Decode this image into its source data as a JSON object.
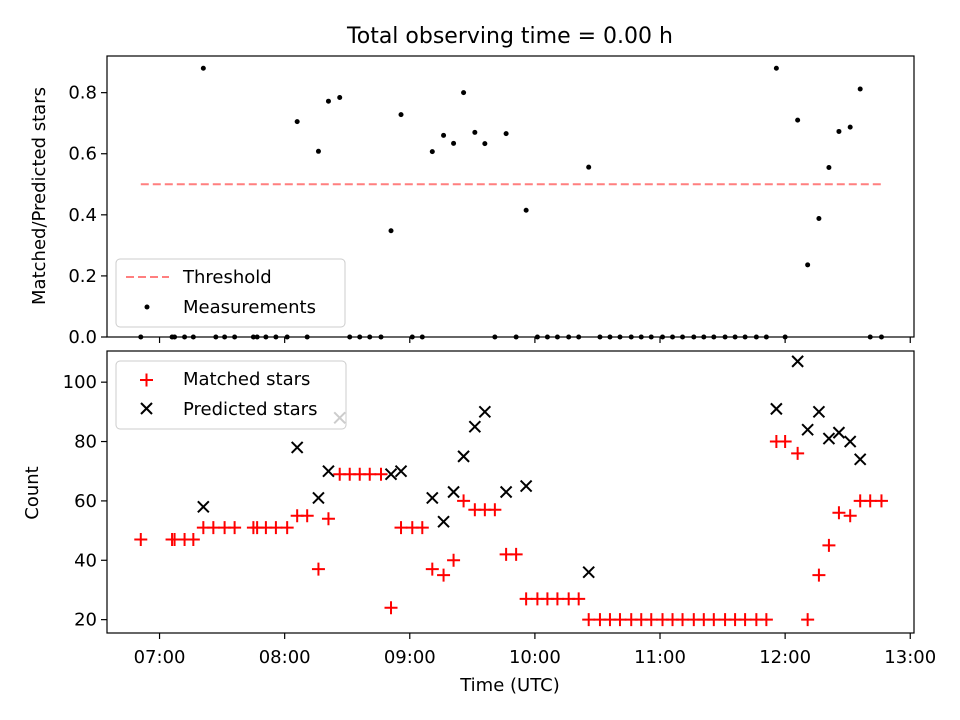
{
  "figure": {
    "title": "Total observing time = 0.00 h",
    "xlabel": "Time (UTC)",
    "x_tick_labels": [
      "07:00",
      "08:00",
      "09:00",
      "10:00",
      "11:00",
      "12:00",
      "13:00"
    ],
    "x_tick_hours": [
      7,
      8,
      9,
      10,
      11,
      12,
      13
    ],
    "xlim_hours": [
      6.58,
      13.03
    ]
  },
  "chart_data": [
    {
      "type": "scatter",
      "panel": "top",
      "ylabel": "Matched/Predicted stars",
      "ylim": [
        0,
        0.92
      ],
      "y_ticks": [
        0.0,
        0.2,
        0.4,
        0.6,
        0.8
      ],
      "y_tick_labels": [
        "0.0",
        "0.2",
        "0.4",
        "0.6",
        "0.8"
      ],
      "legend_position": "lower-left",
      "threshold": {
        "name": "Threshold",
        "value": 0.5,
        "x_range": [
          6.85,
          12.77
        ],
        "color": "#ff7f7f"
      },
      "series": [
        {
          "name": "Measurements",
          "color": "#000000",
          "x": [
            6.85,
            7.1,
            7.12,
            7.2,
            7.27,
            7.35,
            7.45,
            7.52,
            7.6,
            7.75,
            7.78,
            7.85,
            7.93,
            8.02,
            8.1,
            8.18,
            8.27,
            8.35,
            8.44,
            8.52,
            8.6,
            8.68,
            8.77,
            8.85,
            8.93,
            9.02,
            9.1,
            9.18,
            9.27,
            9.35,
            9.43,
            9.52,
            9.6,
            9.68,
            9.77,
            9.85,
            9.93,
            10.02,
            10.1,
            10.18,
            10.27,
            10.35,
            10.43,
            10.52,
            10.6,
            10.68,
            10.77,
            10.85,
            10.93,
            11.02,
            11.1,
            11.18,
            11.27,
            11.35,
            11.43,
            11.52,
            11.6,
            11.68,
            11.77,
            11.85,
            11.93,
            12.0,
            12.1,
            12.18,
            12.27,
            12.35,
            12.43,
            12.52,
            12.6,
            12.68,
            12.77
          ],
          "y": [
            0.0,
            0.0,
            0.0,
            0.0,
            0.0,
            0.88,
            0.0,
            0.0,
            0.0,
            0.0,
            0.0,
            0.0,
            0.0,
            0.0,
            0.705,
            0.0,
            0.608,
            0.772,
            0.784,
            0.0,
            0.0,
            0.0,
            0.0,
            0.348,
            0.728,
            0.0,
            0.0,
            0.607,
            0.66,
            0.634,
            0.8,
            0.67,
            0.633,
            0.0,
            0.666,
            0.0,
            0.415,
            0.0,
            0.0,
            0.0,
            0.0,
            0.0,
            0.556,
            0.0,
            0.0,
            0.0,
            0.0,
            0.0,
            0.0,
            0.0,
            0.0,
            0.0,
            0.0,
            0.0,
            0.0,
            0.0,
            0.0,
            0.0,
            0.0,
            0.0,
            0.88,
            0.0,
            0.71,
            0.236,
            0.388,
            0.555,
            0.673,
            0.687,
            0.812,
            0.0,
            0.0
          ]
        }
      ]
    },
    {
      "type": "scatter",
      "panel": "bottom",
      "ylabel": "Count",
      "ylim": [
        15.5,
        110.5
      ],
      "y_ticks": [
        20,
        40,
        60,
        80,
        100
      ],
      "y_tick_labels": [
        "20",
        "40",
        "60",
        "80",
        "100"
      ],
      "legend_position": "upper-left",
      "series": [
        {
          "name": "Matched stars",
          "marker": "plus",
          "color": "#ff0000",
          "x": [
            6.85,
            7.1,
            7.12,
            7.2,
            7.27,
            7.35,
            7.43,
            7.52,
            7.6,
            7.75,
            7.78,
            7.85,
            7.93,
            8.02,
            8.1,
            8.18,
            8.27,
            8.35,
            8.44,
            8.52,
            8.6,
            8.68,
            8.77,
            8.85,
            8.93,
            9.02,
            9.1,
            9.18,
            9.27,
            9.35,
            9.43,
            9.52,
            9.6,
            9.68,
            9.77,
            9.85,
            9.93,
            10.02,
            10.1,
            10.18,
            10.27,
            10.35,
            10.43,
            10.52,
            10.6,
            10.68,
            10.77,
            10.85,
            10.93,
            11.02,
            11.1,
            11.18,
            11.27,
            11.35,
            11.43,
            11.52,
            11.6,
            11.68,
            11.77,
            11.85,
            11.93,
            12.0,
            12.1,
            12.18,
            12.27,
            12.35,
            12.43,
            12.52,
            12.6,
            12.68,
            12.77
          ],
          "y": [
            47,
            47,
            47,
            47,
            47,
            51,
            51,
            51,
            51,
            51,
            51,
            51,
            51,
            51,
            55,
            55,
            37,
            54,
            69,
            69,
            69,
            69,
            69,
            24,
            51,
            51,
            51,
            37,
            35,
            40,
            60,
            57,
            57,
            57,
            42,
            42,
            27,
            27,
            27,
            27,
            27,
            27,
            20,
            20,
            20,
            20,
            20,
            20,
            20,
            20,
            20,
            20,
            20,
            20,
            20,
            20,
            20,
            20,
            20,
            20,
            80,
            80,
            76,
            20,
            35,
            45,
            56,
            55,
            60,
            60,
            60
          ]
        },
        {
          "name": "Predicted stars",
          "marker": "x",
          "color": "#000000",
          "x": [
            7.35,
            8.1,
            8.27,
            8.35,
            8.44,
            8.85,
            8.93,
            9.18,
            9.27,
            9.35,
            9.43,
            9.52,
            9.6,
            9.77,
            9.93,
            10.43,
            11.93,
            12.1,
            12.18,
            12.27,
            12.35,
            12.43,
            12.52,
            12.6
          ],
          "y": [
            58,
            78,
            61,
            70,
            88,
            69,
            70,
            61,
            53,
            63,
            75,
            85,
            90,
            63,
            65,
            36,
            91,
            107,
            84,
            90,
            81,
            83,
            80,
            74
          ]
        }
      ]
    }
  ]
}
